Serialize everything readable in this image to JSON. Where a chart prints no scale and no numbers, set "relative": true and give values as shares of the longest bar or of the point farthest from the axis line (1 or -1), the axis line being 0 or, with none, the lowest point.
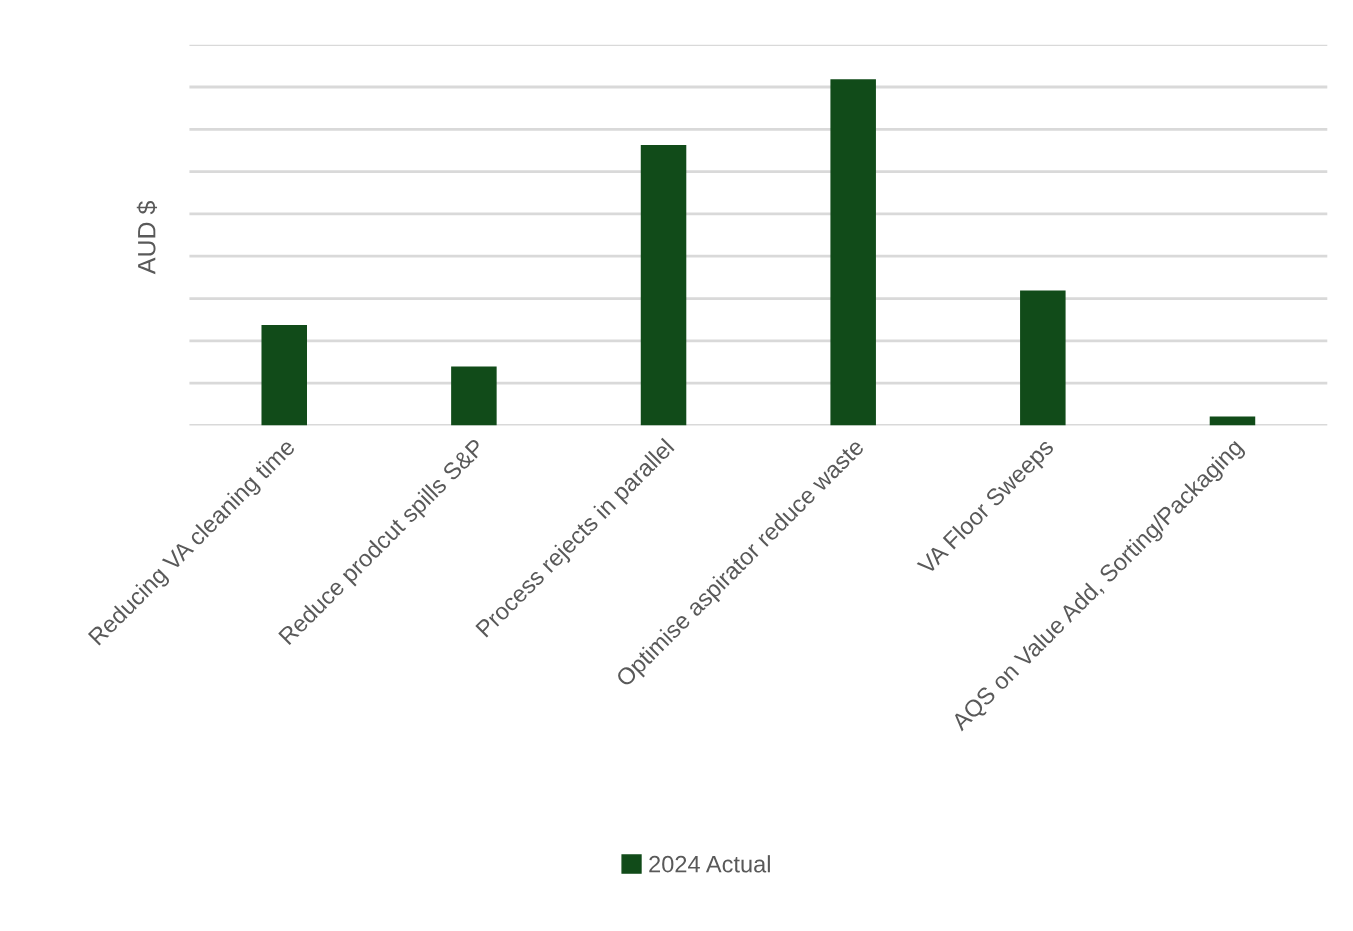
{
  "chart_data": {
    "type": "bar",
    "relative": true,
    "ylabel": "AUD $",
    "categories": [
      "Reducing VA cleaning time",
      "Reduce prodcut spills S&P",
      "Process rejects in parallel",
      "Optimise aspirator reduce waste",
      "VA Floor Sweeps",
      "AQS on Value Add, Sorting/Packaging"
    ],
    "series": [
      {
        "name": "2024 Actual",
        "color": "#114b19",
        "values": [
          0.29,
          0.17,
          0.81,
          1,
          0.39,
          0.026
        ]
      }
    ],
    "grid": "y",
    "legend": "bottom",
    "tick_labels": "x"
  }
}
